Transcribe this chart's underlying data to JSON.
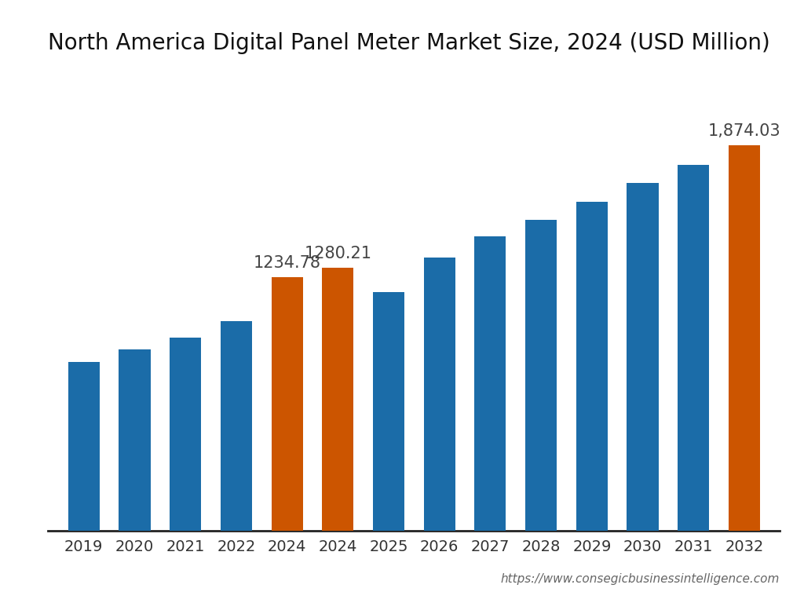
{
  "title": "North America Digital Panel Meter Market Size, 2024 (USD Million)",
  "categories": [
    "2019",
    "2020",
    "2021",
    "2022",
    "2024",
    "2024",
    "2025",
    "2026",
    "2027",
    "2028",
    "2029",
    "2030",
    "2031",
    "2032"
  ],
  "values": [
    820,
    880,
    940,
    1020,
    1234.78,
    1280.21,
    1160,
    1330,
    1430,
    1510,
    1600,
    1690,
    1780,
    1874.03
  ],
  "bar_colors": [
    "#1b6ca8",
    "#1b6ca8",
    "#1b6ca8",
    "#1b6ca8",
    "#cc5500",
    "#cc5500",
    "#1b6ca8",
    "#1b6ca8",
    "#1b6ca8",
    "#1b6ca8",
    "#1b6ca8",
    "#1b6ca8",
    "#1b6ca8",
    "#cc5500"
  ],
  "annotated_indices": [
    4,
    5,
    13
  ],
  "annotated_labels": [
    "1234.78",
    "1280.21",
    "1,874.03"
  ],
  "background_color": "#ffffff",
  "title_fontsize": 20,
  "tick_fontsize": 14,
  "annotation_fontsize": 15,
  "watermark": "https://www.consegicbusinessintelligence.com",
  "ylim": [
    0,
    2200
  ]
}
